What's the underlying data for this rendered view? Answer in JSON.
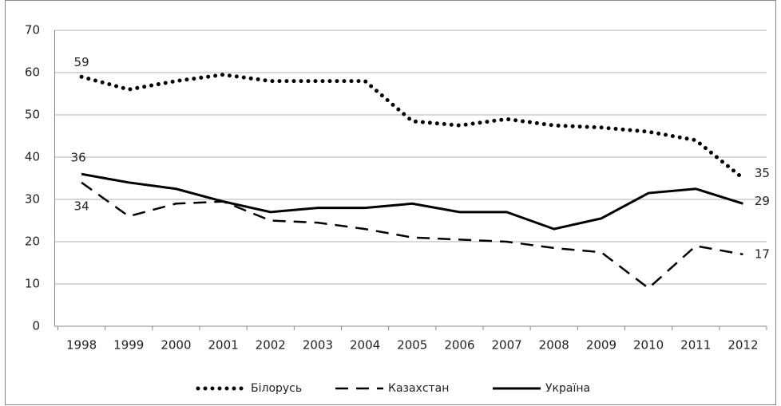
{
  "chart_data": {
    "type": "line",
    "categories": [
      "1998",
      "1999",
      "2000",
      "2001",
      "2002",
      "2003",
      "2004",
      "2005",
      "2006",
      "2007",
      "2008",
      "2009",
      "2010",
      "2011",
      "2012"
    ],
    "series": [
      {
        "name": "Білорусь",
        "color": "#000000",
        "dash": "dotted",
        "values": [
          59,
          56,
          58,
          59.5,
          58,
          58,
          58,
          48.5,
          47.5,
          49,
          47.5,
          47,
          46,
          44,
          35
        ]
      },
      {
        "name": "Казахстан",
        "color": "#000000",
        "dash": "dashed",
        "values": [
          34,
          26,
          29,
          29.5,
          25,
          24.5,
          23,
          21,
          20.5,
          20,
          18.5,
          17.5,
          9,
          19,
          17
        ]
      },
      {
        "name": "Україна",
        "color": "#000000",
        "dash": "solid",
        "values": [
          36,
          34,
          32.5,
          29.5,
          27,
          28,
          28,
          29,
          27,
          27,
          23,
          25.5,
          31.5,
          32.5,
          29
        ]
      }
    ],
    "ylim": [
      0,
      70
    ],
    "yticks": [
      0,
      10,
      20,
      30,
      40,
      50,
      60,
      70
    ],
    "grid": true,
    "legend": "bottom"
  }
}
